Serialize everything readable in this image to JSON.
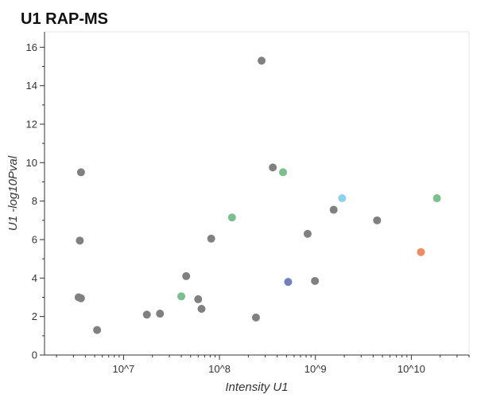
{
  "chart_data": {
    "type": "scatter",
    "title": "U1 RAP-MS",
    "xlabel": "Intensity U1",
    "ylabel": "U1 -log10Pval",
    "xscale": "log",
    "xlim": [
      1500000,
      40000000000
    ],
    "ylim": [
      0,
      16.8
    ],
    "grid": false,
    "x_ticks": [
      {
        "value": 10000000,
        "label": "10^7"
      },
      {
        "value": 100000000,
        "label": "10^8"
      },
      {
        "value": 1000000000,
        "label": "10^9"
      },
      {
        "value": 10000000000,
        "label": "10^10"
      }
    ],
    "y_ticks": [
      0,
      2,
      4,
      6,
      8,
      10,
      12,
      14,
      16
    ],
    "colors": {
      "gray": "#808080",
      "green": "#7bbf8e",
      "light_blue": "#8fd0ec",
      "blue": "#7080c0",
      "orange": "#ef8a62"
    },
    "points": [
      {
        "x": 3400000,
        "y": 3.0,
        "color": "gray"
      },
      {
        "x": 3600000,
        "y": 2.95,
        "color": "gray"
      },
      {
        "x": 3500000,
        "y": 5.95,
        "color": "gray"
      },
      {
        "x": 3600000,
        "y": 9.5,
        "color": "gray"
      },
      {
        "x": 5300000,
        "y": 1.3,
        "color": "gray"
      },
      {
        "x": 17500000,
        "y": 2.1,
        "color": "gray"
      },
      {
        "x": 24000000,
        "y": 2.15,
        "color": "gray"
      },
      {
        "x": 40000000,
        "y": 3.05,
        "color": "green"
      },
      {
        "x": 45000000,
        "y": 4.1,
        "color": "gray"
      },
      {
        "x": 60000000,
        "y": 2.9,
        "color": "gray"
      },
      {
        "x": 65000000,
        "y": 2.4,
        "color": "gray"
      },
      {
        "x": 82000000,
        "y": 6.05,
        "color": "gray"
      },
      {
        "x": 135000000,
        "y": 7.15,
        "color": "green"
      },
      {
        "x": 240000000,
        "y": 1.95,
        "color": "gray"
      },
      {
        "x": 275000000,
        "y": 15.3,
        "color": "gray"
      },
      {
        "x": 360000000,
        "y": 9.75,
        "color": "gray"
      },
      {
        "x": 460000000,
        "y": 9.5,
        "color": "green"
      },
      {
        "x": 520000000,
        "y": 3.8,
        "color": "blue"
      },
      {
        "x": 830000000,
        "y": 6.3,
        "color": "gray"
      },
      {
        "x": 990000000,
        "y": 3.85,
        "color": "gray"
      },
      {
        "x": 1550000000,
        "y": 7.55,
        "color": "gray"
      },
      {
        "x": 1900000000,
        "y": 8.15,
        "color": "light_blue"
      },
      {
        "x": 4400000000,
        "y": 7.0,
        "color": "gray"
      },
      {
        "x": 12600000000,
        "y": 5.35,
        "color": "orange"
      },
      {
        "x": 18500000000,
        "y": 8.15,
        "color": "green"
      }
    ]
  }
}
